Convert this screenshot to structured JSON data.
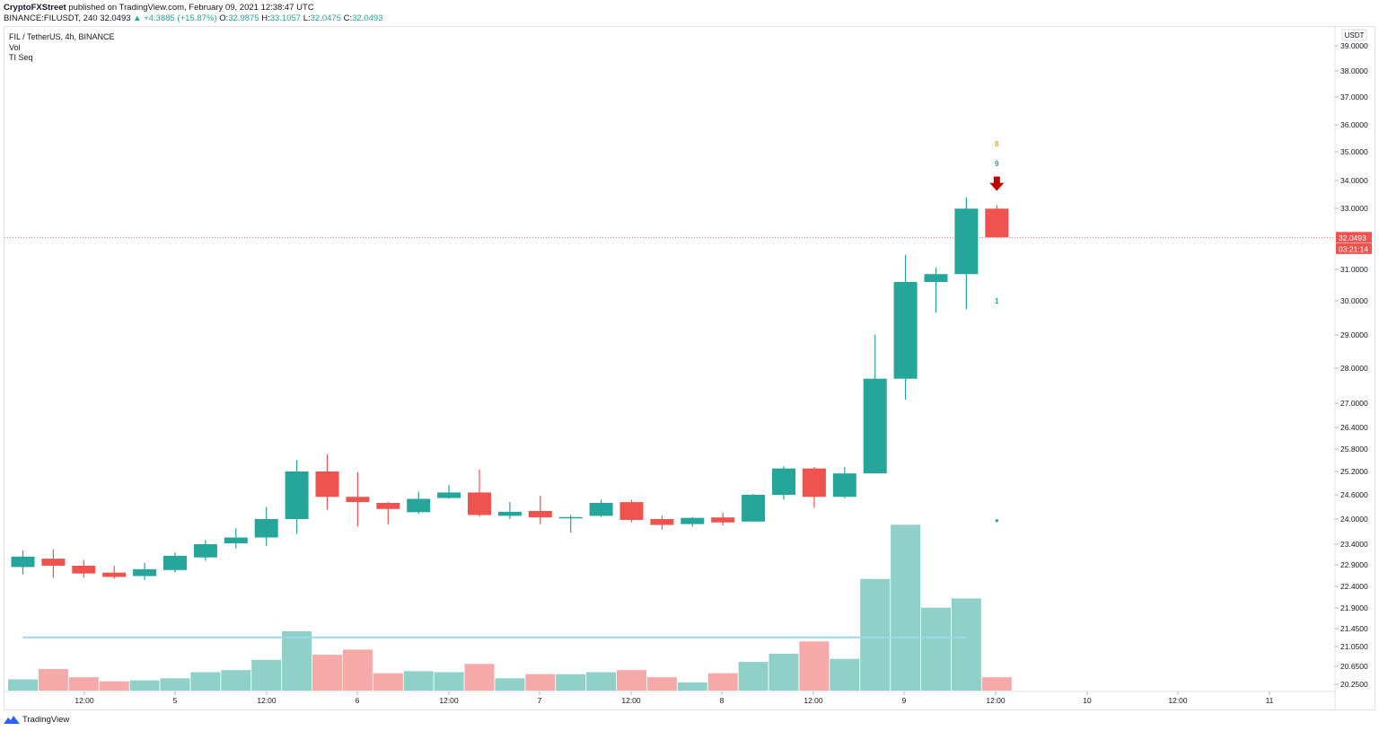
{
  "header": {
    "published": "CryptoFXStreet published on TradingView.com, February 09, 2021 12:38:47 UTC",
    "published_user": "CryptoFXStreet",
    "symbol_line_prefix": "BINANCE:FILUSDT, 240",
    "last": "32.0493",
    "change": "▲ +4.3885 (+15.87%)",
    "o_label": "O:",
    "o": "32.9875",
    "h_label": "H:",
    "h": "33.1057",
    "l_label": "L:",
    "l": "32.0475",
    "c_label": "C:",
    "c": "32.0493"
  },
  "legend": {
    "title": "FIL / TetherUS, 4h, BINANCE",
    "vol": "Vol",
    "tiseq": "TI Seq"
  },
  "footer": {
    "brand": "TradingView"
  },
  "colors": {
    "up": "#26a69a",
    "down": "#ef5350",
    "vol_up": "#8fd1c9",
    "vol_down": "#f5a9a8",
    "arrow": "#c00000",
    "avg": "#9ed8e8",
    "orange": "#f5a623"
  },
  "chart_data": {
    "type": "candlestick",
    "currency_label": "USDT",
    "price_ticks": [
      "39.0000",
      "38.0000",
      "37.0000",
      "36.0000",
      "35.0000",
      "34.0000",
      "33.0000",
      "31.0000",
      "30.0000",
      "29.0000",
      "28.0000",
      "27.0000",
      "26.4000",
      "25.8000",
      "25.2000",
      "24.6000",
      "24.0000",
      "23.4000",
      "22.9000",
      "22.4000",
      "21.9000",
      "21.4500",
      "21.0500",
      "20.6500",
      "20.2500"
    ],
    "price_tag_value": "32.0493",
    "countdown": "03:21:14",
    "time_labels": [
      "12:00",
      "5",
      "12:00",
      "6",
      "12:00",
      "7",
      "12:00",
      "8",
      "12:00",
      "9",
      "12:00",
      "10",
      "12:00",
      "11"
    ],
    "candles": [
      {
        "o": 22.85,
        "h": 23.25,
        "l": 22.68,
        "c": 23.1
      },
      {
        "o": 23.05,
        "h": 23.28,
        "l": 22.6,
        "c": 22.88
      },
      {
        "o": 22.88,
        "h": 23.02,
        "l": 22.6,
        "c": 22.7
      },
      {
        "o": 22.72,
        "h": 22.88,
        "l": 22.58,
        "c": 22.62
      },
      {
        "o": 22.64,
        "h": 22.95,
        "l": 22.55,
        "c": 22.8
      },
      {
        "o": 22.78,
        "h": 23.2,
        "l": 22.72,
        "c": 23.12
      },
      {
        "o": 23.08,
        "h": 23.5,
        "l": 23.0,
        "c": 23.4
      },
      {
        "o": 23.42,
        "h": 23.78,
        "l": 23.3,
        "c": 23.56
      },
      {
        "o": 23.56,
        "h": 24.3,
        "l": 23.36,
        "c": 24.0
      },
      {
        "o": 24.0,
        "h": 25.5,
        "l": 23.65,
        "c": 25.2
      },
      {
        "o": 25.2,
        "h": 25.65,
        "l": 24.23,
        "c": 24.55
      },
      {
        "o": 24.55,
        "h": 25.18,
        "l": 23.82,
        "c": 24.42
      },
      {
        "o": 24.4,
        "h": 24.42,
        "l": 23.88,
        "c": 24.25
      },
      {
        "o": 24.17,
        "h": 24.68,
        "l": 24.12,
        "c": 24.5
      },
      {
        "o": 24.52,
        "h": 24.85,
        "l": 24.5,
        "c": 24.66
      },
      {
        "o": 24.66,
        "h": 25.25,
        "l": 24.06,
        "c": 24.1
      },
      {
        "o": 24.08,
        "h": 24.42,
        "l": 24.0,
        "c": 24.18
      },
      {
        "o": 24.2,
        "h": 24.58,
        "l": 23.88,
        "c": 24.04
      },
      {
        "o": 24.05,
        "h": 24.1,
        "l": 23.68,
        "c": 24.05
      },
      {
        "o": 24.08,
        "h": 24.48,
        "l": 24.05,
        "c": 24.4
      },
      {
        "o": 24.42,
        "h": 24.48,
        "l": 23.92,
        "c": 23.98
      },
      {
        "o": 24.0,
        "h": 24.08,
        "l": 23.75,
        "c": 23.86
      },
      {
        "o": 23.88,
        "h": 24.05,
        "l": 23.82,
        "c": 24.03
      },
      {
        "o": 24.04,
        "h": 24.16,
        "l": 23.85,
        "c": 23.92
      },
      {
        "o": 23.94,
        "h": 24.62,
        "l": 23.94,
        "c": 24.6
      },
      {
        "o": 24.6,
        "h": 25.34,
        "l": 24.48,
        "c": 25.28
      },
      {
        "o": 25.28,
        "h": 25.32,
        "l": 24.28,
        "c": 24.55
      },
      {
        "o": 24.55,
        "h": 25.32,
        "l": 24.52,
        "c": 25.15
      },
      {
        "o": 25.15,
        "h": 29.0,
        "l": 25.15,
        "c": 27.7
      },
      {
        "o": 27.7,
        "h": 31.48,
        "l": 27.1,
        "c": 30.6
      },
      {
        "o": 30.6,
        "h": 31.05,
        "l": 29.65,
        "c": 30.85
      },
      {
        "o": 30.85,
        "h": 33.4,
        "l": 29.75,
        "c": 32.99
      },
      {
        "o": 32.99,
        "h": 33.11,
        "l": 32.05,
        "c": 32.05
      }
    ],
    "volumes": [
      11,
      21,
      13,
      9,
      10,
      12,
      18,
      20,
      30,
      58,
      35,
      40,
      17,
      19,
      18,
      26,
      12,
      16,
      16,
      18,
      20,
      13,
      8,
      17,
      28,
      36,
      48,
      31,
      109,
      162,
      81,
      90,
      13
    ],
    "volume_average": 52,
    "tiseq_labels": [
      {
        "index": 32,
        "text": "8",
        "color": "#f5a623",
        "price": 35.3
      },
      {
        "index": 32,
        "text": "9",
        "color": "#26a69a",
        "price": 34.6
      },
      {
        "index": 32,
        "text": "1",
        "color": "#26a69a",
        "price": 30.0
      },
      {
        "index": 32,
        "text": "•",
        "color": "#26a69a",
        "price": 23.95
      }
    ],
    "signal": {
      "index": 32,
      "type": "sell-arrow",
      "price": 33.85
    }
  }
}
